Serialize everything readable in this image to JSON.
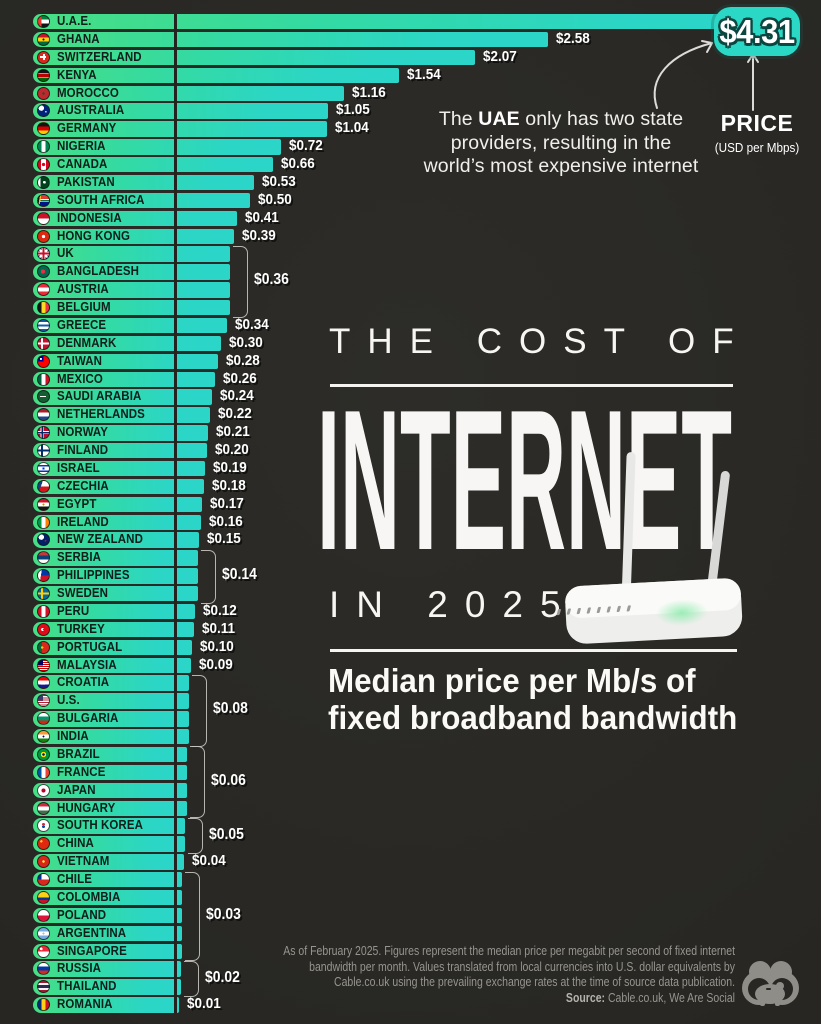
{
  "colors": {
    "background": "#282723",
    "bar_green": "#47DE84",
    "bar_teal": "#2BD6C7",
    "badge": "#2BD8C6",
    "text_light": "#f5f4f1",
    "footer_gray": "#97958f"
  },
  "badge": {
    "value": "$4.31"
  },
  "price_legend": {
    "title": "PRICE",
    "sub": "(USD per Mbps)"
  },
  "annotation": {
    "pre": "The ",
    "bold": "UAE",
    "post": " only has two state providers, resulting in the world’s most expensive internet"
  },
  "title": {
    "kicker": "THE COST OF",
    "main": "INTERNET",
    "year_line": "IN 2025"
  },
  "subtitle": {
    "line1": "Median price per Mb/s of",
    "line2": "fixed broadband bandwidth"
  },
  "footer": {
    "line1": "As of February 2025. Figures represent the median price per megabit per second of fixed internet",
    "line2": "bandwidth per month. Values translated from local currencies into U.S. dollar equivalents by",
    "line3": "Cable.co.uk using the prevailing exchange rates at the time of source data publication.",
    "source_label": "Source:",
    "source_text": " Cable.co.uk, We Are Social"
  },
  "chart_data": {
    "type": "bar",
    "orientation": "horizontal",
    "title": "The Cost of Internet in 2025",
    "subtitle": "Median price per Mb/s of fixed broadband bandwidth",
    "unit": "USD per Mbps",
    "xlim": [
      0,
      4.31
    ],
    "value_groups": [
      {
        "label": "$0.36",
        "start": 13,
        "end": 16
      },
      {
        "label": "$0.14",
        "start": 30,
        "end": 32
      },
      {
        "label": "$0.08",
        "start": 37,
        "end": 40
      },
      {
        "label": "$0.06",
        "start": 41,
        "end": 44
      },
      {
        "label": "$0.05",
        "start": 45,
        "end": 46
      },
      {
        "label": "$0.03",
        "start": 48,
        "end": 52
      },
      {
        "label": "$0.02",
        "start": 53,
        "end": 54
      }
    ],
    "countries": [
      {
        "name": "U.A.E.",
        "value": 4.31,
        "label": "$4.31",
        "flag": "linear-gradient(90deg,#ea3c2e 0 30%,rgba(0,0,0,0) 30%),linear-gradient(180deg,#00843d 0 33%,#fff 33% 66%,#141414 66%)"
      },
      {
        "name": "GHANA",
        "value": 2.58,
        "label": "$2.58",
        "flag": "radial-gradient(circle at 50% 50%,#141414 13%,rgba(0,0,0,0) 14%),linear-gradient(180deg,#ce1126 0 33%,#fcd116 33% 66%,#006b3f 66%)"
      },
      {
        "name": "SWITZERLAND",
        "value": 2.07,
        "label": "$2.07",
        "flag": "linear-gradient(#fff 0 0) 50% 50%/58% 18% no-repeat,linear-gradient(#fff 0 0) 50% 50%/18% 58% no-repeat,linear-gradient(#da291c 0 0)"
      },
      {
        "name": "KENYA",
        "value": 1.54,
        "label": "$1.54",
        "flag": "linear-gradient(180deg,#141414 0 28%,#fff 28% 34%,#bb0000 34% 64%,#fff 64% 70%,#006600 70%)"
      },
      {
        "name": "MOROCCO",
        "value": 1.16,
        "label": "$1.16",
        "flag": "radial-gradient(circle at 50% 50%,#006233 16%,rgba(0,0,0,0) 17%),linear-gradient(#c1272d 0 0)"
      },
      {
        "name": "AUSTRALIA",
        "value": 1.05,
        "label": "$1.05",
        "flag": "radial-gradient(circle at 72% 62%,#fff 7%,rgba(0,0,0,0) 8%),radial-gradient(circle at 30% 28%,#fff 24%,rgba(0,0,0,0) 25%),linear-gradient(#00247d 0 0)"
      },
      {
        "name": "GERMANY",
        "value": 1.04,
        "label": "$1.04",
        "flag": "linear-gradient(180deg,#141414 0 33%,#dd0000 33% 66%,#ffce00 66%)"
      },
      {
        "name": "NIGERIA",
        "value": 0.72,
        "label": "$0.72",
        "flag": "linear-gradient(90deg,#008751 0 33%,#fff 33% 66%,#008751 66%)"
      },
      {
        "name": "CANADA",
        "value": 0.66,
        "label": "$0.66",
        "flag": "radial-gradient(circle at 50% 50%,#d80621 22%,rgba(0,0,0,0) 23%),linear-gradient(90deg,#d80621 0 26%,#fff 26% 74%,#d80621 74%)"
      },
      {
        "name": "PAKISTAN",
        "value": 0.53,
        "label": "$0.53",
        "flag": "radial-gradient(circle at 58% 48%,#fff 16%,rgba(0,0,0,0) 17%),linear-gradient(90deg,#fff 0 22%,#01411c 22%)"
      },
      {
        "name": "SOUTH AFRICA",
        "value": 0.5,
        "label": "$0.50",
        "flag": "linear-gradient(100deg,#141414 0 16%,#ffb81c 16% 26%,rgba(0,0,0,0) 26%),linear-gradient(180deg,#e03c31 0 38%,#fff 38% 46%,#007749 46% 58%,#fff 58% 64%,#001489 64%)"
      },
      {
        "name": "INDONESIA",
        "value": 0.41,
        "label": "$0.41",
        "flag": "linear-gradient(180deg,#ce1126 0 50%,#fff 50%)"
      },
      {
        "name": "HONG KONG",
        "value": 0.39,
        "label": "$0.39",
        "flag": "radial-gradient(circle at 50% 50%,#fff 22%,rgba(0,0,0,0) 23%),linear-gradient(#de2910 0 0)"
      },
      {
        "name": "UK",
        "value": 0.36,
        "label": "$0.36",
        "flag": "linear-gradient(0deg,rgba(0,0,0,0) 43%,#c8102e 43% 57%,rgba(0,0,0,0) 57%),linear-gradient(90deg,rgba(0,0,0,0) 43%,#c8102e 43% 57%,rgba(0,0,0,0) 57%),linear-gradient(0deg,rgba(0,0,0,0) 34%,#fff 34% 66%,rgba(0,0,0,0) 66%),linear-gradient(90deg,rgba(0,0,0,0) 34%,#fff 34% 66%,rgba(0,0,0,0) 66%),linear-gradient(45deg,rgba(0,0,0,0) 45%,#fff 45% 55%,rgba(0,0,0,0) 55%),linear-gradient(135deg,rgba(0,0,0,0) 45%,#fff 45% 55%,rgba(0,0,0,0) 55%),linear-gradient(#012169 0 0)"
      },
      {
        "name": "BANGLADESH",
        "value": 0.36,
        "label": "$0.36",
        "flag": "radial-gradient(circle at 45% 50%,#f42a41 26%,rgba(0,0,0,0) 27%),linear-gradient(#006a4e 0 0)"
      },
      {
        "name": "AUSTRIA",
        "value": 0.36,
        "label": "$0.36",
        "flag": "linear-gradient(180deg,#ed2939 0 33%,#fff 33% 66%,#ed2939 66%)"
      },
      {
        "name": "BELGIUM",
        "value": 0.36,
        "label": "$0.36",
        "flag": "linear-gradient(90deg,#141414 0 33%,#fdda24 33% 66%,#ef3340 66%)"
      },
      {
        "name": "GREECE",
        "value": 0.34,
        "label": "$0.34",
        "flag": "linear-gradient(180deg,#0d5eaf 0 20%,#fff 20% 40%,#0d5eaf 40% 60%,#fff 60% 80%,#0d5eaf 80%)"
      },
      {
        "name": "DENMARK",
        "value": 0.3,
        "label": "$0.30",
        "flag": "linear-gradient(0deg,rgba(0,0,0,0) 40%,#fff 40% 58%,rgba(0,0,0,0) 58%),linear-gradient(90deg,rgba(0,0,0,0) 28%,#fff 28% 44%,rgba(0,0,0,0) 44%),linear-gradient(#c8102e 0 0)"
      },
      {
        "name": "TAIWAN",
        "value": 0.28,
        "label": "$0.28",
        "flag": "radial-gradient(circle at 27% 27%,#fff 9%,rgba(0,0,0,0) 10%),linear-gradient(90deg,#000095 0 50%,rgba(0,0,0,0) 50%) 0 0/100% 50% no-repeat,linear-gradient(#fe0000 0 0)"
      },
      {
        "name": "MEXICO",
        "value": 0.26,
        "label": "$0.26",
        "flag": "linear-gradient(90deg,#006341 0 33%,#fff 33% 66%,#ce1126 66%)"
      },
      {
        "name": "SAUDI ARABIA",
        "value": 0.24,
        "label": "$0.24",
        "flag": "linear-gradient(#fff 0 0) 50% 42%/55% 10% no-repeat,linear-gradient(#165d31 0 0)"
      },
      {
        "name": "NETHERLANDS",
        "value": 0.22,
        "label": "$0.22",
        "flag": "linear-gradient(180deg,#ae1c28 0 33%,#fff 33% 66%,#21468b 66%)"
      },
      {
        "name": "NORWAY",
        "value": 0.21,
        "label": "$0.21",
        "flag": "linear-gradient(0deg,rgba(0,0,0,0) 42%,#002868 42% 56%,rgba(0,0,0,0) 56%),linear-gradient(90deg,rgba(0,0,0,0) 30%,#002868 30% 44%,rgba(0,0,0,0) 44%),linear-gradient(0deg,rgba(0,0,0,0) 36%,#fff 36% 62%,rgba(0,0,0,0) 62%),linear-gradient(90deg,rgba(0,0,0,0) 24%,#fff 24% 50%,rgba(0,0,0,0) 50%),linear-gradient(#ba0c2f 0 0)"
      },
      {
        "name": "FINLAND",
        "value": 0.2,
        "label": "$0.20",
        "flag": "linear-gradient(0deg,rgba(0,0,0,0) 40%,#002f6c 40% 58%,rgba(0,0,0,0) 58%),linear-gradient(90deg,rgba(0,0,0,0) 28%,#002f6c 28% 44%,rgba(0,0,0,0) 44%),linear-gradient(#fff 0 0)"
      },
      {
        "name": "ISRAEL",
        "value": 0.19,
        "label": "$0.19",
        "flag": "radial-gradient(circle at 50% 50%,#0038b8 14%,rgba(0,0,0,0) 15%),linear-gradient(180deg,#fff 0 16%,#0038b8 16% 30%,#fff 30% 70%,#0038b8 70% 84%,#fff 84%)"
      },
      {
        "name": "CZECHIA",
        "value": 0.18,
        "label": "$0.18",
        "flag": "linear-gradient(110deg,#11457e 0 32%,rgba(0,0,0,0) 32%),linear-gradient(180deg,#fff 0 50%,#d7141a 50%)"
      },
      {
        "name": "EGYPT",
        "value": 0.17,
        "label": "$0.17",
        "flag": "radial-gradient(circle at 50% 50%,#c09300 12%,rgba(0,0,0,0) 13%),linear-gradient(180deg,#ce1126 0 33%,#fff 33% 66%,#141414 66%)"
      },
      {
        "name": "IRELAND",
        "value": 0.16,
        "label": "$0.16",
        "flag": "linear-gradient(90deg,#009a44 0 33%,#fff 33% 66%,#ff8200 66%)"
      },
      {
        "name": "NEW ZEALAND",
        "value": 0.15,
        "label": "$0.15",
        "flag": "radial-gradient(circle at 68% 62%,#c8102e 8%,rgba(0,0,0,0) 9%),radial-gradient(circle at 30% 28%,#fff 24%,rgba(0,0,0,0) 25%),linear-gradient(#012169 0 0)"
      },
      {
        "name": "SERBIA",
        "value": 0.14,
        "label": "$0.14",
        "flag": "linear-gradient(180deg,#c6363c 0 33%,#0c4076 33% 66%,#fff 66%)"
      },
      {
        "name": "PHILIPPINES",
        "value": 0.14,
        "label": "$0.14",
        "flag": "linear-gradient(100deg,#fff 0 30%,rgba(0,0,0,0) 30%),linear-gradient(180deg,#0038a8 0 50%,#ce1126 50%)"
      },
      {
        "name": "SWEDEN",
        "value": 0.14,
        "label": "$0.14",
        "flag": "linear-gradient(0deg,rgba(0,0,0,0) 40%,#ffcd00 40% 58%,rgba(0,0,0,0) 58%),linear-gradient(90deg,rgba(0,0,0,0) 28%,#ffcd00 28% 44%,rgba(0,0,0,0) 44%),linear-gradient(#006aa7 0 0)"
      },
      {
        "name": "PERU",
        "value": 0.12,
        "label": "$0.12",
        "flag": "linear-gradient(90deg,#d91023 0 33%,#fff 33% 66%,#d91023 66%)"
      },
      {
        "name": "TURKEY",
        "value": 0.11,
        "label": "$0.11",
        "flag": "radial-gradient(circle at 52% 50%,#e30a17 12%,rgba(0,0,0,0) 13%),radial-gradient(circle at 44% 50%,#fff 20%,rgba(0,0,0,0) 21%),linear-gradient(#e30a17 0 0)"
      },
      {
        "name": "PORTUGAL",
        "value": 0.1,
        "label": "$0.10",
        "flag": "radial-gradient(circle at 38% 50%,#f1c40f 14%,rgba(0,0,0,0) 15%),linear-gradient(90deg,#046a38 0 38%,#da291c 38%)"
      },
      {
        "name": "MALAYSIA",
        "value": 0.09,
        "label": "$0.09",
        "flag": "linear-gradient(90deg,#010066 0 45%,rgba(0,0,0,0) 45%) 0 0/100% 50% no-repeat,repeating-linear-gradient(180deg,#cc0001 0 9%,#fff 9% 18%)"
      },
      {
        "name": "CROATIA",
        "value": 0.08,
        "label": "$0.08",
        "flag": "linear-gradient(#fff 0 0) 50% 50%/40% 24% no-repeat,linear-gradient(180deg,#ff0000 0 33%,#fff 33% 66%,#171796 66%)"
      },
      {
        "name": "U.S.",
        "value": 0.08,
        "label": "$0.08",
        "flag": "linear-gradient(90deg,#3c3b6e 0 45%,rgba(0,0,0,0) 45%) 0 0/100% 50% no-repeat,repeating-linear-gradient(180deg,#b22234 0 8%,#fff 8% 16%)"
      },
      {
        "name": "BULGARIA",
        "value": 0.08,
        "label": "$0.08",
        "flag": "linear-gradient(180deg,#fff 0 33%,#00966e 33% 66%,#d62612 66%)"
      },
      {
        "name": "INDIA",
        "value": 0.08,
        "label": "$0.08",
        "flag": "radial-gradient(circle at 50% 50%,#000080 10%,rgba(0,0,0,0) 11%),linear-gradient(180deg,#ff9933 0 33%,#fff 33% 66%,#138808 66%)"
      },
      {
        "name": "BRAZIL",
        "value": 0.06,
        "label": "$0.06",
        "flag": "radial-gradient(circle at 50% 50%,#012169 16%,rgba(0,0,0,0) 17%),radial-gradient(circle at 50% 50%,#fedf00 34%,rgba(0,0,0,0) 35%),linear-gradient(#009739 0 0)"
      },
      {
        "name": "FRANCE",
        "value": 0.06,
        "label": "$0.06",
        "flag": "linear-gradient(90deg,#0055a4 0 33%,#fff 33% 66%,#ef4135 66%)"
      },
      {
        "name": "JAPAN",
        "value": 0.06,
        "label": "$0.06",
        "flag": "radial-gradient(circle at 50% 50%,#bc002d 26%,rgba(0,0,0,0) 27%),linear-gradient(#fff 0 0)"
      },
      {
        "name": "HUNGARY",
        "value": 0.06,
        "label": "$0.06",
        "flag": "linear-gradient(180deg,#cd2a3e 0 33%,#fff 33% 66%,#436f4d 66%)"
      },
      {
        "name": "SOUTH KOREA",
        "value": 0.05,
        "label": "$0.05",
        "flag": "radial-gradient(circle at 50% 40%,#cd2e3a 16%,rgba(0,0,0,0) 17%),radial-gradient(circle at 50% 60%,#0047a0 16%,rgba(0,0,0,0) 17%),linear-gradient(#fff 0 0)"
      },
      {
        "name": "CHINA",
        "value": 0.05,
        "label": "$0.05",
        "flag": "radial-gradient(circle at 30% 30%,#ffde00 10%,rgba(0,0,0,0) 11%),linear-gradient(#de2910 0 0)"
      },
      {
        "name": "VIETNAM",
        "value": 0.04,
        "label": "$0.04",
        "flag": "radial-gradient(circle at 50% 50%,#ffff00 16%,rgba(0,0,0,0) 17%),linear-gradient(#da251d 0 0)"
      },
      {
        "name": "CHILE",
        "value": 0.03,
        "label": "$0.03",
        "flag": "linear-gradient(90deg,#0032a0 0 34%,rgba(0,0,0,0) 34%) 0 0/100% 50% no-repeat,linear-gradient(180deg,#fff 0 50%,#da291c 50%)"
      },
      {
        "name": "COLOMBIA",
        "value": 0.03,
        "label": "$0.03",
        "flag": "linear-gradient(180deg,#fcd116 0 50%,#003893 50% 75%,#ce1126 75%)"
      },
      {
        "name": "POLAND",
        "value": 0.03,
        "label": "$0.03",
        "flag": "linear-gradient(180deg,#fff 0 50%,#dc143c 50%)"
      },
      {
        "name": "ARGENTINA",
        "value": 0.03,
        "label": "$0.03",
        "flag": "radial-gradient(circle at 50% 50%,#f6b40e 12%,rgba(0,0,0,0) 13%),linear-gradient(180deg,#74acdf 0 33%,#fff 33% 66%,#74acdf 66%)"
      },
      {
        "name": "SINGAPORE",
        "value": 0.03,
        "label": "$0.03",
        "flag": "radial-gradient(circle at 30% 26%,#fff 12%,rgba(0,0,0,0) 13%),linear-gradient(180deg,#ed2939 0 50%,#fff 50%)"
      },
      {
        "name": "RUSSIA",
        "value": 0.02,
        "label": "$0.02",
        "flag": "linear-gradient(180deg,#fff 0 33%,#0039a6 33% 66%,#d52b1e 66%)"
      },
      {
        "name": "THAILAND",
        "value": 0.02,
        "label": "$0.02",
        "flag": "linear-gradient(180deg,#a51931 0 18%,#f4f5f8 18% 36%,#2d2a4a 36% 64%,#f4f5f8 64% 82%,#a51931 82%)"
      },
      {
        "name": "ROMANIA",
        "value": 0.01,
        "label": "$0.01",
        "flag": "linear-gradient(90deg,#002b7f 0 33%,#fcd116 33% 66%,#ce1126 66%)"
      }
    ]
  }
}
